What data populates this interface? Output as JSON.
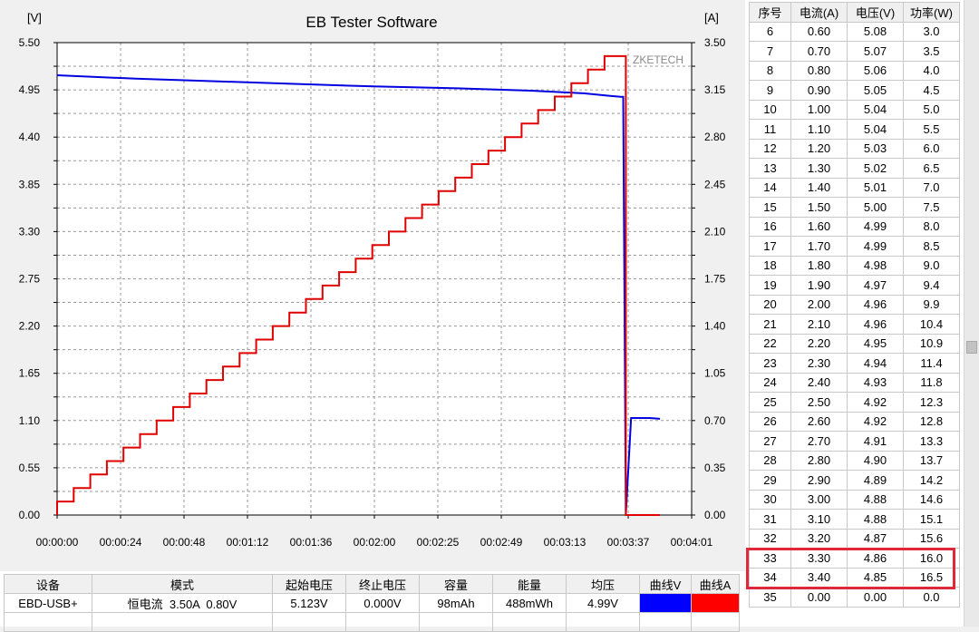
{
  "chart": {
    "title": "EB Tester Software",
    "watermark": "ZKETECH",
    "left_unit": "[V]",
    "right_unit": "[A]",
    "left_ticks": [
      "5.50",
      "4.95",
      "4.40",
      "3.85",
      "3.30",
      "2.75",
      "2.20",
      "1.65",
      "1.10",
      "0.55",
      "0.00"
    ],
    "right_ticks": [
      "3.50",
      "3.15",
      "2.80",
      "2.45",
      "2.10",
      "1.75",
      "1.40",
      "1.05",
      "0.70",
      "0.35",
      "0.00"
    ],
    "x_ticks": [
      "00:00:00",
      "00:00:24",
      "00:00:48",
      "00:01:12",
      "00:01:36",
      "00:02:00",
      "00:02:25",
      "00:02:49",
      "00:03:13",
      "00:03:37",
      "00:04:01"
    ]
  },
  "chart_data": {
    "type": "line",
    "title": "EB Tester Software",
    "ylabel": "[V]",
    "y2label": "[A]",
    "ylim": [
      0,
      5.5
    ],
    "y2lim": [
      0,
      3.5
    ],
    "x_range_seconds": [
      0,
      241
    ],
    "grid": true,
    "series": [
      {
        "name": "曲线V",
        "axis": "left",
        "color": "#0000e0",
        "x": [
          0,
          30,
          60,
          90,
          120,
          150,
          180,
          200,
          210,
          214,
          215,
          216,
          218,
          225,
          229
        ],
        "y": [
          5.12,
          5.08,
          5.05,
          5.02,
          4.99,
          4.97,
          4.94,
          4.91,
          4.88,
          4.87,
          4.87,
          0.0,
          1.13,
          1.13,
          1.12
        ]
      },
      {
        "name": "曲线A",
        "axis": "right",
        "color": "#e00000",
        "steps": [
          0.1,
          0.2,
          0.3,
          0.4,
          0.5,
          0.6,
          0.7,
          0.8,
          0.9,
          1.0,
          1.1,
          1.2,
          1.3,
          1.4,
          1.5,
          1.6,
          1.7,
          1.8,
          1.9,
          2.0,
          2.1,
          2.2,
          2.3,
          2.4,
          2.5,
          2.6,
          2.7,
          2.8,
          2.9,
          3.0,
          3.1,
          3.2,
          3.3,
          3.4
        ],
        "step_seconds": 6.3,
        "drop_time": 216,
        "end_time": 229
      }
    ]
  },
  "table": {
    "headers": [
      "序号",
      "电流(A)",
      "电压(V)",
      "功率(W)"
    ],
    "rows": [
      [
        "6",
        "0.60",
        "5.08",
        "3.0"
      ],
      [
        "7",
        "0.70",
        "5.07",
        "3.5"
      ],
      [
        "8",
        "0.80",
        "5.06",
        "4.0"
      ],
      [
        "9",
        "0.90",
        "5.05",
        "4.5"
      ],
      [
        "10",
        "1.00",
        "5.04",
        "5.0"
      ],
      [
        "11",
        "1.10",
        "5.04",
        "5.5"
      ],
      [
        "12",
        "1.20",
        "5.03",
        "6.0"
      ],
      [
        "13",
        "1.30",
        "5.02",
        "6.5"
      ],
      [
        "14",
        "1.40",
        "5.01",
        "7.0"
      ],
      [
        "15",
        "1.50",
        "5.00",
        "7.5"
      ],
      [
        "16",
        "1.60",
        "4.99",
        "8.0"
      ],
      [
        "17",
        "1.70",
        "4.99",
        "8.5"
      ],
      [
        "18",
        "1.80",
        "4.98",
        "9.0"
      ],
      [
        "19",
        "1.90",
        "4.97",
        "9.4"
      ],
      [
        "20",
        "2.00",
        "4.96",
        "9.9"
      ],
      [
        "21",
        "2.10",
        "4.96",
        "10.4"
      ],
      [
        "22",
        "2.20",
        "4.95",
        "10.9"
      ],
      [
        "23",
        "2.30",
        "4.94",
        "11.4"
      ],
      [
        "24",
        "2.40",
        "4.93",
        "11.8"
      ],
      [
        "25",
        "2.50",
        "4.92",
        "12.3"
      ],
      [
        "26",
        "2.60",
        "4.92",
        "12.8"
      ],
      [
        "27",
        "2.70",
        "4.91",
        "13.3"
      ],
      [
        "28",
        "2.80",
        "4.90",
        "13.7"
      ],
      [
        "29",
        "2.90",
        "4.89",
        "14.2"
      ],
      [
        "30",
        "3.00",
        "4.88",
        "14.6"
      ],
      [
        "31",
        "3.10",
        "4.88",
        "15.1"
      ],
      [
        "32",
        "3.20",
        "4.87",
        "15.6"
      ],
      [
        "33",
        "3.30",
        "4.86",
        "16.0"
      ],
      [
        "34",
        "3.40",
        "4.85",
        "16.5"
      ],
      [
        "35",
        "0.00",
        "0.00",
        "0.0"
      ]
    ],
    "highlight_color": "#e0283c"
  },
  "summary": {
    "headers": [
      "设备",
      "模式",
      "起始电压",
      "终止电压",
      "容量",
      "能量",
      "均压",
      "曲线V",
      "曲线A"
    ],
    "values": [
      "EBD-USB+",
      "恒电流  3.50A  0.80V",
      "5.123V",
      "0.000V",
      "98mAh",
      "488mWh",
      "4.99V",
      "",
      ""
    ],
    "curve_v_color": "#0000ff",
    "curve_a_color": "#ff0000"
  }
}
